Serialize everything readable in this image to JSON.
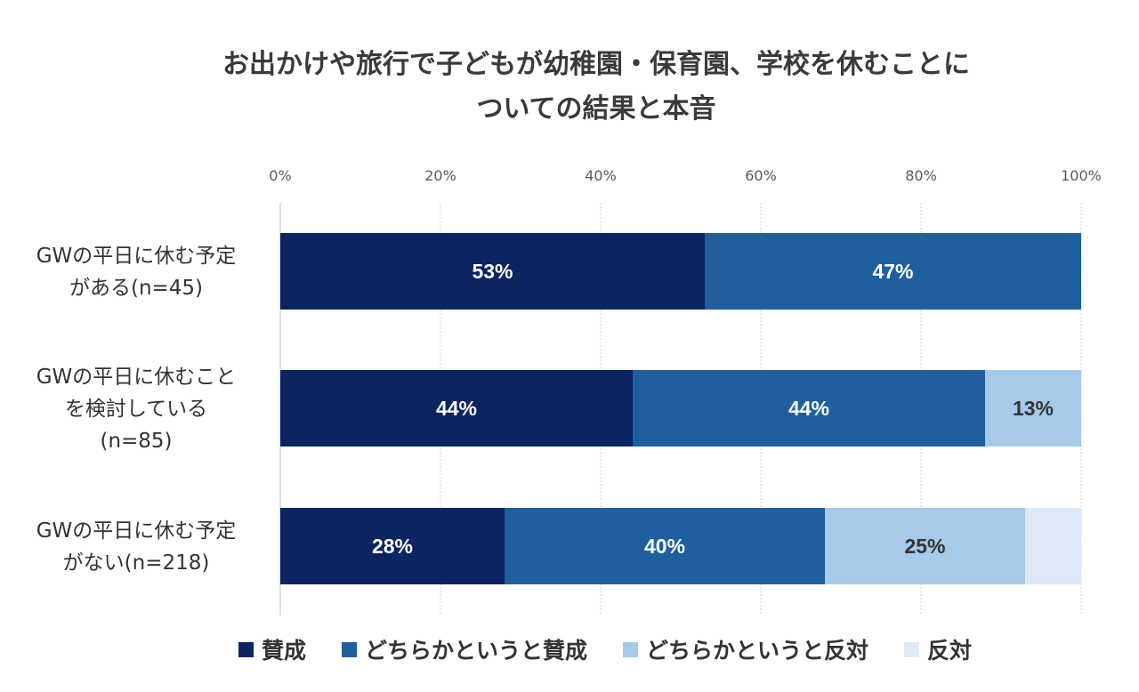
{
  "chart_data": {
    "type": "bar",
    "orientation": "horizontal",
    "stacked": true,
    "title_lines": [
      "お出かけや旅行で子どもが幼稚園・保育園、学校を休むことに",
      "ついての結果と本音"
    ],
    "categories": [
      [
        "GWの平日に休む予定",
        "がある(n=45)"
      ],
      [
        "GWの平日に休むこと",
        "を検討している",
        "(n=85)"
      ],
      [
        "GWの平日に休む予定",
        "がない(n=218)"
      ]
    ],
    "series": [
      {
        "name": "賛成",
        "values": [
          53,
          44,
          28
        ],
        "labels": [
          "53%",
          "44%",
          "28%"
        ],
        "color": "#0c2461",
        "label_color": "#ffffff"
      },
      {
        "name": "どちらかというと賛成",
        "values": [
          47,
          44,
          40
        ],
        "labels": [
          "47%",
          "44%",
          "40%"
        ],
        "color": "#1f5f9e",
        "label_color": "#ffffff"
      },
      {
        "name": "どちらかというと反対",
        "values": [
          0,
          13,
          25
        ],
        "labels": [
          "",
          "13%",
          "25%"
        ],
        "color": "#a7c9ea",
        "label_color": "#333333"
      },
      {
        "name": "反対",
        "values": [
          0,
          0,
          8
        ],
        "labels": [
          "",
          "",
          ""
        ],
        "color": "#dde9f7",
        "label_color": "#333333"
      }
    ],
    "x_axis": {
      "min": 0,
      "max": 100,
      "ticks": [
        0,
        20,
        40,
        60,
        80,
        100
      ],
      "tick_labels": [
        "0%",
        "20%",
        "40%",
        "60%",
        "80%",
        "100%"
      ],
      "position": "top"
    },
    "grid": true,
    "legend_position": "bottom"
  }
}
